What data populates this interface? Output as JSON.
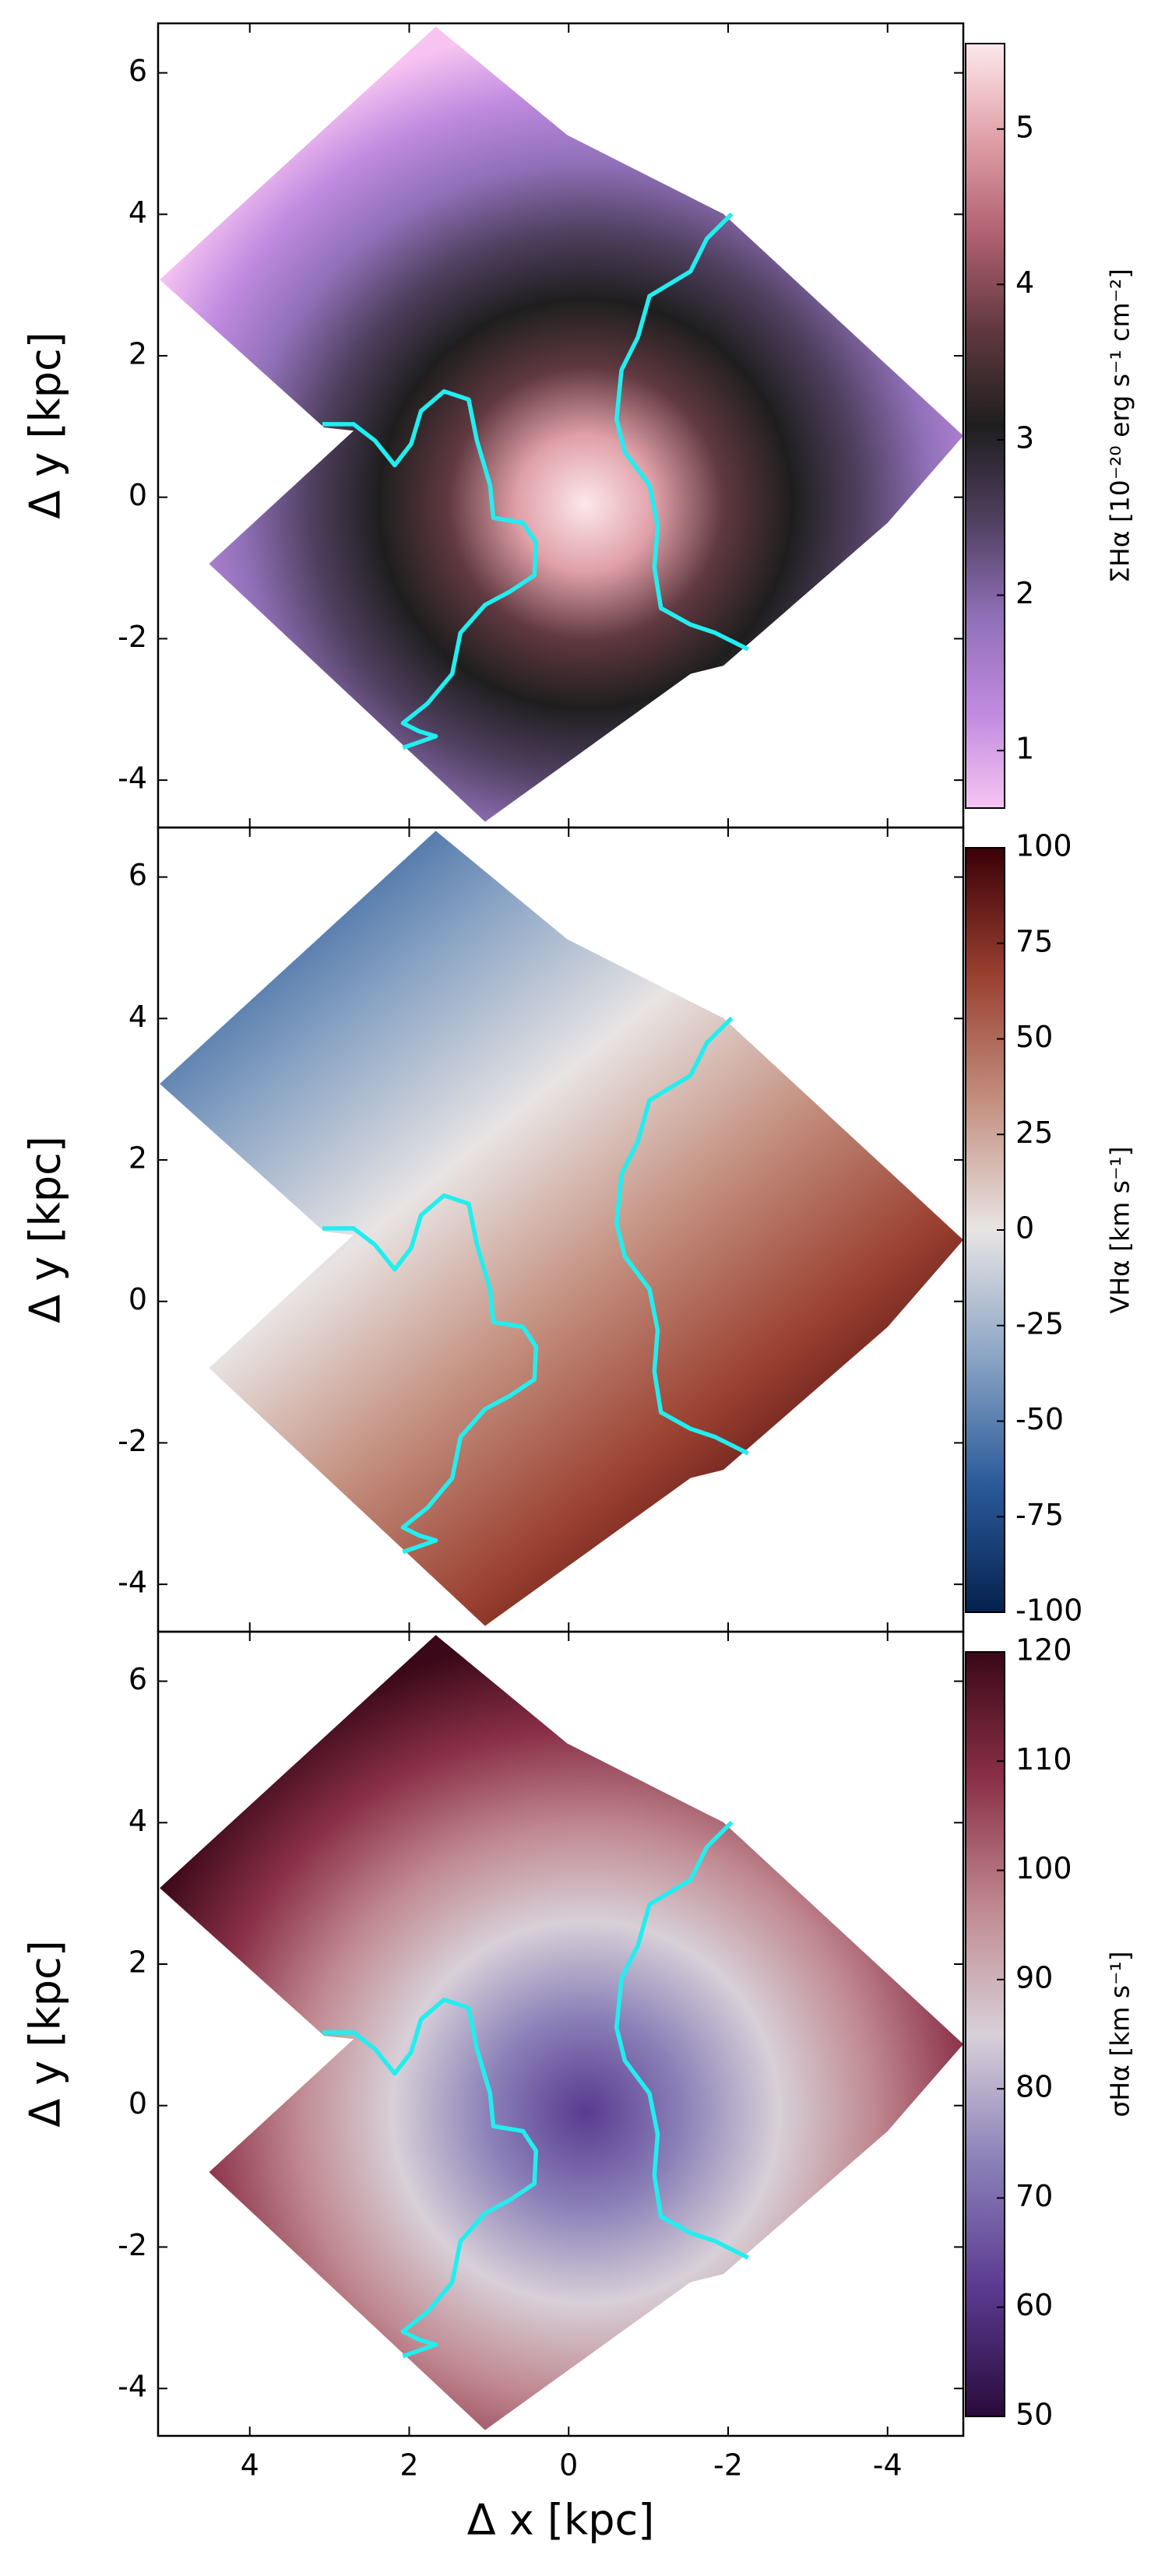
{
  "chart_data": [
    {
      "type": "heatmap",
      "ylabel": "Δ y [kpc]",
      "xlim": [
        5.15,
        -4.95
      ],
      "ylim": [
        -4.67,
        6.7
      ],
      "xticks": [
        4,
        2,
        0,
        -2,
        -4
      ],
      "yticks": [
        -4,
        -2,
        0,
        2,
        4,
        6
      ],
      "xticklabels": false,
      "colorbar": {
        "label": "ΣHα [10⁻²⁰ erg s⁻¹ cm⁻²]",
        "lim": [
          0.63,
          5.55
        ],
        "ticks": [
          1,
          2,
          3,
          4,
          5
        ],
        "colors": [
          "#f7c4f2",
          "#c08ae0",
          "#9070b8",
          "#504060",
          "#1e1e1e",
          "#603840",
          "#b06070",
          "#e0a0a8",
          "#fce8ec"
        ]
      }
    },
    {
      "type": "heatmap",
      "ylabel": "Δ y [kpc]",
      "xlim": [
        5.15,
        -4.95
      ],
      "ylim": [
        -4.67,
        6.7
      ],
      "xticks": [
        4,
        2,
        0,
        -2,
        -4
      ],
      "yticks": [
        -4,
        -2,
        0,
        2,
        4,
        6
      ],
      "xticklabels": false,
      "colorbar": {
        "label": "VHα [km s⁻¹]",
        "lim": [
          -100,
          100
        ],
        "ticks": [
          -100,
          -75,
          -50,
          -25,
          0,
          25,
          50,
          75,
          100
        ],
        "colors": [
          "#05224e",
          "#2a5a9a",
          "#8aa4c4",
          "#e8e4e4",
          "#c49080",
          "#9a4030",
          "#3a0008"
        ]
      }
    },
    {
      "type": "heatmap",
      "ylabel": "Δ y [kpc]",
      "xlabel": "Δ x [kpc]",
      "xlim": [
        5.15,
        -4.95
      ],
      "ylim": [
        -4.67,
        6.7
      ],
      "xticks": [
        4,
        2,
        0,
        -2,
        -4
      ],
      "yticks": [
        -4,
        -2,
        0,
        2,
        4,
        6
      ],
      "xticklabels": true,
      "colorbar": {
        "label": "σHα [km s⁻¹]",
        "lim": [
          50,
          120
        ],
        "ticks": [
          50,
          60,
          70,
          80,
          90,
          100,
          110,
          120
        ],
        "colors": [
          "#2a0a3a",
          "#5a3a90",
          "#8a80b8",
          "#d8d0d8",
          "#c08890",
          "#8a3048",
          "#3a0818"
        ]
      }
    }
  ]
}
